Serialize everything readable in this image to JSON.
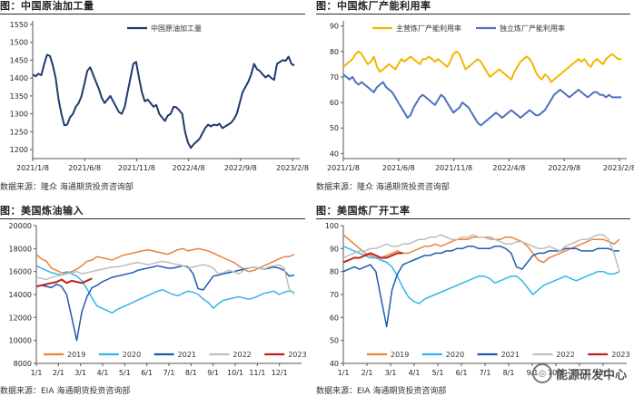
{
  "watermark": {
    "text": "能源研发中心",
    "icon": "wechat-icon"
  },
  "charts": [
    {
      "title": "图：中国原油加工量",
      "source": "数据来源：隆众    海通期货投资咨询部",
      "chart_data": {
        "type": "line",
        "x_ticks": [
          "2021/1/8",
          "2021/6/8",
          "2021/11/8",
          "2022/4/8",
          "2022/9/8",
          "2023/2/8"
        ],
        "y_ticks": [
          1200,
          1250,
          1300,
          1350,
          1400,
          1450,
          1500,
          1550
        ],
        "ylim": [
          1175,
          1560
        ],
        "grid": false,
        "legend": "top-center",
        "series": [
          {
            "name": "中国原油加工量",
            "color": "#1f3a6e",
            "width": 2,
            "values": [
              1410,
              1405,
              1412,
              1408,
              1440,
              1465,
              1462,
              1435,
              1400,
              1340,
              1300,
              1268,
              1270,
              1290,
              1300,
              1320,
              1330,
              1350,
              1385,
              1420,
              1430,
              1410,
              1390,
              1370,
              1345,
              1330,
              1340,
              1350,
              1335,
              1320,
              1305,
              1300,
              1320,
              1360,
              1400,
              1440,
              1445,
              1400,
              1360,
              1335,
              1340,
              1330,
              1320,
              1325,
              1300,
              1290,
              1280,
              1295,
              1300,
              1320,
              1318,
              1310,
              1300,
              1250,
              1220,
              1205,
              1215,
              1222,
              1230,
              1245,
              1260,
              1270,
              1265,
              1270,
              1268,
              1272,
              1260,
              1265,
              1270,
              1275,
              1285,
              1300,
              1330,
              1360,
              1375,
              1390,
              1410,
              1440,
              1425,
              1420,
              1410,
              1402,
              1408,
              1400,
              1395,
              1440,
              1445,
              1450,
              1448,
              1460,
              1440,
              1435
            ]
          }
        ]
      }
    },
    {
      "title": "图：中国炼厂产能利用率",
      "source": "数据来源：隆众    海通期货投资咨询部",
      "chart_data": {
        "type": "line",
        "x_ticks": [
          "2021/1/8",
          "2021/6/8",
          "2021/11/8",
          "2022/4/8",
          "2022/9/8",
          "2023/2/8"
        ],
        "y_ticks": [
          40,
          50,
          60,
          70,
          80,
          90
        ],
        "ylim": [
          38,
          92
        ],
        "grid": false,
        "legend": "top-center",
        "series": [
          {
            "name": "主营炼厂产能利用率",
            "color": "#f0b800",
            "width": 2,
            "values": [
              74,
              75,
              76,
              77,
              79,
              80,
              79,
              77,
              75,
              76,
              78,
              74,
              72,
              73,
              74,
              75,
              74,
              73,
              75,
              77,
              76,
              77,
              78,
              77,
              76,
              75,
              77,
              77,
              78,
              77,
              76,
              77,
              76,
              75,
              74,
              76,
              79,
              80,
              79,
              76,
              73,
              74,
              75,
              76,
              77,
              76,
              74,
              72,
              70,
              71,
              72,
              73,
              72,
              71,
              70,
              69,
              72,
              74,
              76,
              77,
              78,
              77,
              75,
              72,
              70,
              69,
              71,
              70,
              68,
              69,
              70,
              71,
              72,
              73,
              74,
              75,
              76,
              77,
              76,
              77,
              75,
              74,
              76,
              77,
              76,
              75,
              77,
              78,
              79,
              78,
              77,
              77
            ]
          },
          {
            "name": "独立炼厂产能利用率",
            "color": "#4a72c4",
            "width": 2,
            "values": [
              71,
              70,
              69,
              70,
              68,
              67,
              68,
              67,
              66,
              65,
              64,
              66,
              67,
              68,
              66,
              65,
              64,
              62,
              60,
              58,
              56,
              54,
              55,
              58,
              60,
              62,
              63,
              62,
              61,
              60,
              59,
              61,
              63,
              62,
              60,
              58,
              56,
              57,
              58,
              60,
              59,
              58,
              56,
              54,
              52,
              51,
              52,
              53,
              54,
              55,
              56,
              55,
              54,
              55,
              56,
              57,
              56,
              55,
              54,
              55,
              56,
              57,
              56,
              55,
              55,
              56,
              57,
              59,
              61,
              63,
              64,
              65,
              64,
              63,
              62,
              63,
              64,
              65,
              64,
              63,
              62,
              63,
              64,
              64,
              63,
              63,
              62,
              63,
              62,
              62,
              62,
              62
            ]
          }
        ]
      }
    },
    {
      "title": "图：美国炼油输入",
      "source": "数据来源：EIA    海通期货投资咨询部",
      "chart_data": {
        "type": "line",
        "x_ticks": [
          "1/1",
          "2/1",
          "3/1",
          "4/1",
          "5/1",
          "6/1",
          "7/1",
          "8/1",
          "9/1",
          "10/1",
          "11/1",
          "12/1"
        ],
        "y_ticks": [
          8000,
          10000,
          12000,
          14000,
          16000,
          18000,
          20000
        ],
        "ylim": [
          8000,
          20000
        ],
        "grid": false,
        "legend": "bottom",
        "series": [
          {
            "name": "2019",
            "color": "#e8833a",
            "width": 1.5,
            "values": [
              17500,
              17100,
              16900,
              16300,
              16100,
              15900,
              15900,
              16000,
              16200,
              16500,
              16900,
              17000,
              17300,
              17200,
              17100,
              17000,
              17200,
              17400,
              17500,
              17600,
              17700,
              17800,
              17900,
              17800,
              17700,
              17600,
              17500,
              17700,
              17900,
              18000,
              17800,
              17900,
              18000,
              17900,
              17800,
              17600,
              17400,
              17200,
              17000,
              16800,
              16500,
              16200,
              16000,
              16100,
              16300,
              16500,
              16700,
              16900,
              17100,
              17300,
              17300,
              17500
            ]
          },
          {
            "name": "2020",
            "color": "#35b5e8",
            "width": 1.5,
            "values": [
              16500,
              16300,
              16100,
              15900,
              15800,
              15700,
              16000,
              15800,
              15600,
              15200,
              14500,
              13700,
              13000,
              12800,
              12600,
              12400,
              12700,
              12900,
              13100,
              13300,
              13500,
              13700,
              13900,
              14100,
              14300,
              14400,
              14200,
              14000,
              13900,
              14100,
              14300,
              14200,
              14000,
              13600,
              13300,
              12800,
              13200,
              13500,
              13600,
              13700,
              13800,
              13700,
              13600,
              13700,
              13900,
              14100,
              14200,
              14300,
              14000,
              14200,
              14300,
              14200
            ]
          },
          {
            "name": "2021",
            "color": "#1e5bb0",
            "width": 1.5,
            "values": [
              14700,
              14800,
              14700,
              14600,
              14900,
              14700,
              14000,
              12000,
              10000,
              12500,
              13800,
              14600,
              14800,
              15100,
              15300,
              15500,
              15600,
              15700,
              15800,
              15900,
              16100,
              16200,
              16300,
              16400,
              16500,
              16400,
              16300,
              16300,
              16400,
              16500,
              16400,
              15800,
              14500,
              14400,
              15000,
              15600,
              15700,
              15800,
              15900,
              16000,
              16100,
              16200,
              16300,
              16400,
              16300,
              16200,
              16300,
              16400,
              16300,
              16100,
              15600,
              15700
            ]
          },
          {
            "name": "2022",
            "color": "#bdbdbd",
            "width": 1.5,
            "values": [
              15500,
              15400,
              15300,
              15500,
              15600,
              15700,
              15800,
              15900,
              16000,
              15800,
              15900,
              16000,
              16100,
              16200,
              16300,
              16400,
              16400,
              16500,
              16600,
              16700,
              16800,
              16700,
              16600,
              16700,
              16800,
              16900,
              16800,
              16700,
              16600,
              16500,
              16300,
              16400,
              16500,
              16600,
              16500,
              16300,
              15800,
              15900,
              16100,
              16000,
              15800,
              16100,
              16300,
              16400,
              16300,
              16200,
              16400,
              16500,
              16600,
              16300,
              14500,
              14000
            ]
          },
          {
            "name": "2023",
            "color": "#c0201f",
            "width": 2,
            "values": [
              14700,
              14800,
              14900,
              15000,
              15100,
              15300,
              15000,
              15200,
              15100,
              15000,
              15200,
              15400
            ]
          }
        ]
      }
    },
    {
      "title": "图：美国炼厂开工率",
      "source": "数据来源：EIA    海通期货投资咨询部",
      "chart_data": {
        "type": "line",
        "x_ticks": [
          "1/1",
          "2/1",
          "3/1",
          "4/1",
          "5/1",
          "6/1",
          "7/1",
          "8/1",
          "9/1",
          "10/1",
          "11/1",
          "12/1"
        ],
        "y_ticks": [
          40,
          50,
          60,
          70,
          80,
          90,
          100
        ],
        "ylim": [
          40,
          100
        ],
        "grid": false,
        "legend": "bottom",
        "series": [
          {
            "name": "2019",
            "color": "#e8833a",
            "width": 1.5,
            "values": [
              96,
              94,
              92,
              90,
              88,
              87,
              86,
              86,
              87,
              88,
              89,
              88,
              88,
              89,
              90,
              91,
              91,
              92,
              91,
              92,
              93,
              94,
              94,
              94,
              95,
              95,
              95,
              95,
              94,
              94,
              95,
              95,
              94,
              93,
              91,
              88,
              85,
              84,
              86,
              87,
              88,
              89,
              90,
              91,
              92,
              93,
              94,
              94,
              94,
              93,
              92,
              94
            ]
          },
          {
            "name": "2020",
            "color": "#35b5e8",
            "width": 1.5,
            "values": [
              91,
              90,
              89,
              88,
              87,
              86,
              86,
              85,
              84,
              82,
              78,
              73,
              69,
              67,
              66,
              68,
              69,
              70,
              71,
              72,
              73,
              74,
              75,
              76,
              77,
              78,
              78,
              77,
              75,
              76,
              77,
              78,
              78,
              76,
              73,
              70,
              72,
              74,
              75,
              76,
              77,
              78,
              77,
              76,
              77,
              78,
              79,
              80,
              80,
              79,
              79,
              80
            ]
          },
          {
            "name": "2021",
            "color": "#1e5bb0",
            "width": 1.5,
            "values": [
              80,
              81,
              82,
              81,
              82,
              83,
              80,
              68,
              56,
              72,
              79,
              83,
              84,
              85,
              86,
              87,
              87,
              88,
              88,
              89,
              89,
              90,
              90,
              91,
              91,
              90,
              90,
              90,
              91,
              91,
              90,
              88,
              82,
              81,
              84,
              87,
              88,
              88,
              89,
              89,
              89,
              90,
              90,
              90,
              89,
              89,
              89,
              90,
              90,
              90,
              89,
              89
            ]
          },
          {
            "name": "2022",
            "color": "#bdbdbd",
            "width": 1.5,
            "values": [
              86,
              87,
              88,
              89,
              89,
              90,
              90,
              91,
              92,
              91,
              91,
              92,
              92,
              93,
              94,
              94,
              95,
              95,
              96,
              95,
              94,
              94,
              95,
              95,
              96,
              95,
              95,
              94,
              94,
              93,
              92,
              92,
              93,
              93,
              92,
              91,
              90,
              90,
              91,
              90,
              89,
              91,
              92,
              93,
              94,
              94,
              95,
              96,
              96,
              94,
              88,
              80
            ]
          },
          {
            "name": "2023",
            "color": "#c0201f",
            "width": 2,
            "values": [
              84,
              85,
              86,
              86,
              87,
              88,
              87,
              86,
              86,
              87,
              88,
              88
            ]
          }
        ]
      }
    }
  ]
}
